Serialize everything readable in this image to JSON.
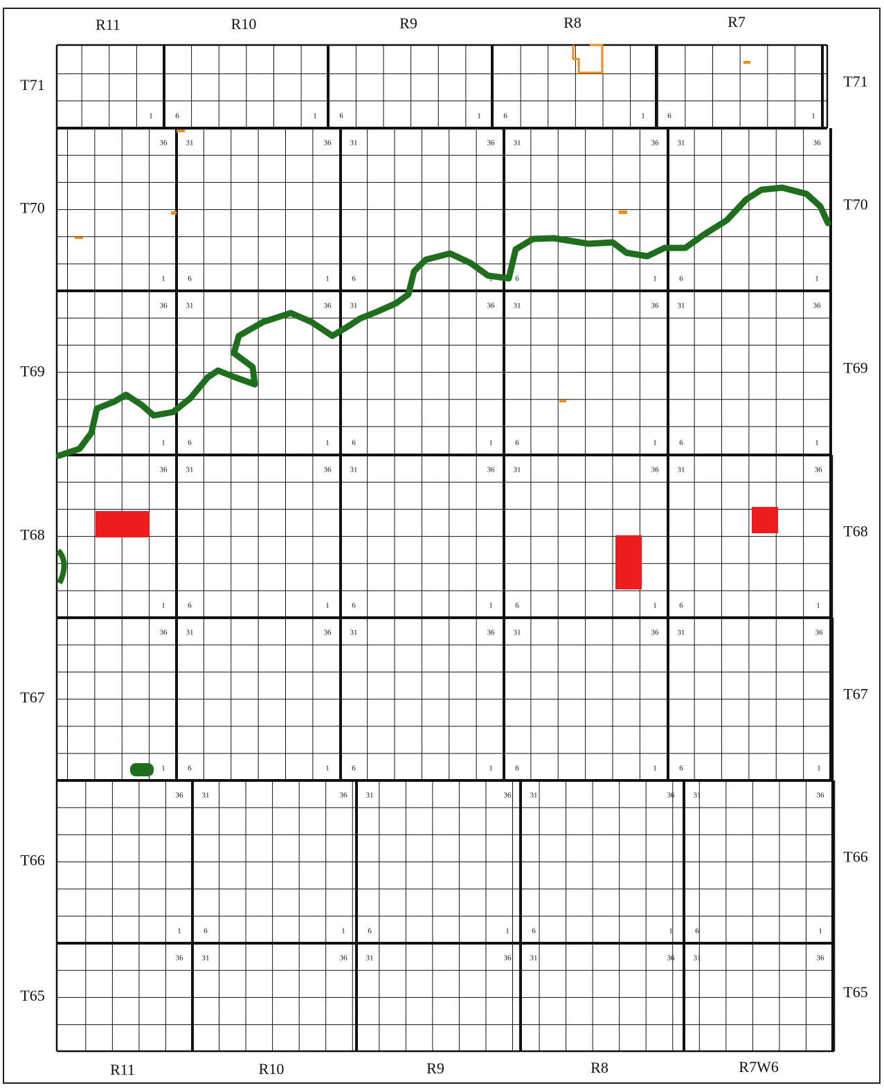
{
  "map": {
    "range_labels_top": [
      "R11",
      "R10",
      "R9",
      "R8",
      "R7"
    ],
    "range_labels_bottom": [
      "R11",
      "R10",
      "R9",
      "R8",
      "R7W6"
    ],
    "township_labels": [
      "T71",
      "T70",
      "T69",
      "T68",
      "T67",
      "T66",
      "T65"
    ],
    "corner_labels": {
      "top_left": "31",
      "top_right": "36",
      "bottom_left": "6",
      "bottom_right": "1"
    }
  }
}
